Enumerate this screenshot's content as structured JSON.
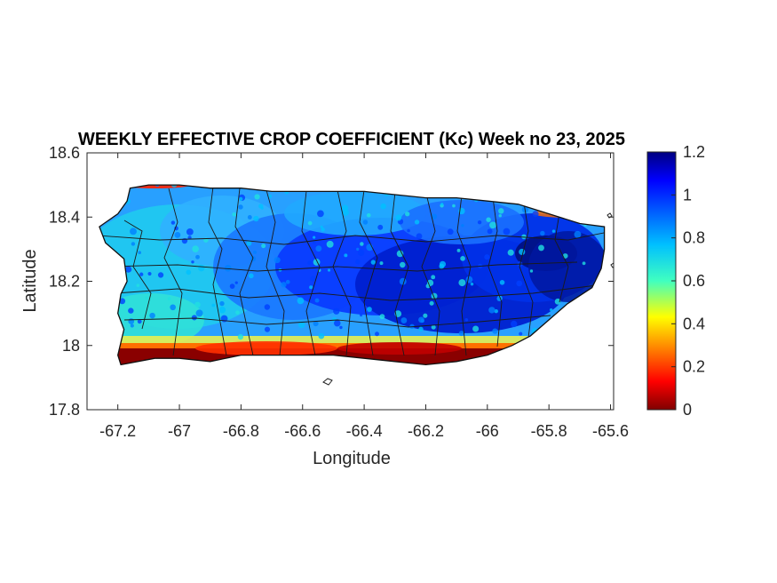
{
  "title": "WEEKLY EFFECTIVE CROP COEFFICIENT (Kc) Week no 23, 2025",
  "axes": {
    "xlabel": "Longitude",
    "ylabel": "Latitude",
    "xlim": [
      -67.3,
      -65.59
    ],
    "ylim": [
      17.8,
      18.6
    ],
    "xticks": [
      -67.2,
      -67,
      -66.8,
      -66.6,
      -66.4,
      -66.2,
      -66,
      -65.8,
      -65.6
    ],
    "xtick_labels": [
      "-67.2",
      "-67",
      "-66.8",
      "-66.6",
      "-66.4",
      "-66.2",
      "-66",
      "-65.8",
      "-65.6"
    ],
    "yticks": [
      17.8,
      18,
      18.2,
      18.4,
      18.6
    ],
    "ytick_labels": [
      "17.8",
      "18",
      "18.2",
      "18.4",
      "18.6"
    ]
  },
  "colorbar": {
    "colormap": "jet",
    "range": [
      0,
      1.2
    ],
    "ticks": [
      0,
      0.2,
      0.4,
      0.6,
      0.8,
      1,
      1.2
    ],
    "tick_labels": [
      "0",
      "0.2",
      "0.4",
      "0.6",
      "0.8",
      "1",
      "1.2"
    ]
  },
  "map": {
    "region": "Puerto Rico",
    "variable": "Kc",
    "coast_polygon": [
      [
        -67.26,
        18.37
      ],
      [
        -67.23,
        18.39
      ],
      [
        -67.2,
        18.41
      ],
      [
        -67.17,
        18.45
      ],
      [
        -67.16,
        18.49
      ],
      [
        -67.1,
        18.5
      ],
      [
        -67.0,
        18.5
      ],
      [
        -66.9,
        18.49
      ],
      [
        -66.8,
        18.49
      ],
      [
        -66.7,
        18.48
      ],
      [
        -66.6,
        18.48
      ],
      [
        -66.5,
        18.48
      ],
      [
        -66.4,
        18.48
      ],
      [
        -66.3,
        18.47
      ],
      [
        -66.2,
        18.46
      ],
      [
        -66.1,
        18.46
      ],
      [
        -66.0,
        18.45
      ],
      [
        -65.9,
        18.44
      ],
      [
        -65.8,
        18.41
      ],
      [
        -65.7,
        18.38
      ],
      [
        -65.62,
        18.37
      ],
      [
        -65.62,
        18.3
      ],
      [
        -65.63,
        18.24
      ],
      [
        -65.66,
        18.18
      ],
      [
        -65.74,
        18.13
      ],
      [
        -65.8,
        18.08
      ],
      [
        -65.86,
        18.03
      ],
      [
        -65.92,
        18.0
      ],
      [
        -66.0,
        17.97
      ],
      [
        -66.1,
        17.95
      ],
      [
        -66.2,
        17.94
      ],
      [
        -66.3,
        17.95
      ],
      [
        -66.4,
        17.96
      ],
      [
        -66.5,
        17.97
      ],
      [
        -66.6,
        17.97
      ],
      [
        -66.7,
        17.97
      ],
      [
        -66.8,
        17.97
      ],
      [
        -66.9,
        17.95
      ],
      [
        -67.0,
        17.96
      ],
      [
        -67.08,
        17.96
      ],
      [
        -67.19,
        17.94
      ],
      [
        -67.2,
        17.97
      ],
      [
        -67.18,
        18.05
      ],
      [
        -67.2,
        18.1
      ],
      [
        -67.19,
        18.16
      ],
      [
        -67.17,
        18.2
      ],
      [
        -67.18,
        18.27
      ],
      [
        -67.24,
        18.32
      ]
    ]
  }
}
